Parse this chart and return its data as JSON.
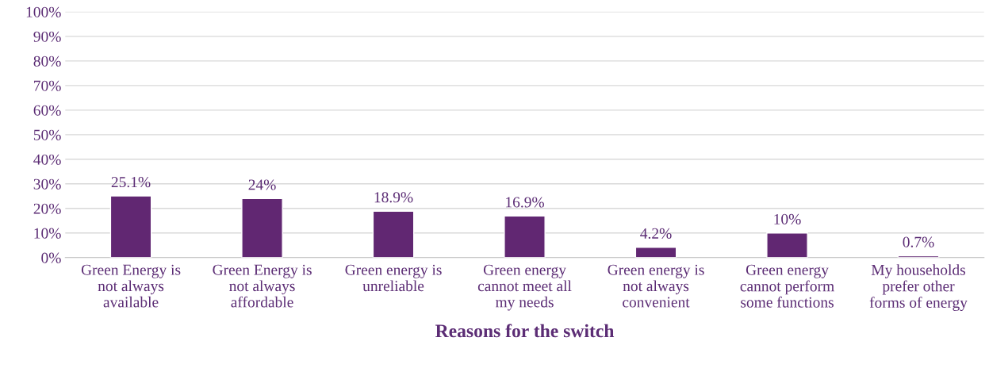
{
  "chart_data": {
    "type": "bar",
    "xlabel": "Reasons for the switch",
    "categories": [
      "Green Energy is\nnot always\navailable",
      "Green Energy is\nnot always\naffordable",
      "Green energy is\nunreliable",
      "Green energy\ncannot meet all\nmy needs",
      "Green energy is\nnot always\nconvenient",
      "Green energy\ncannot perform\nsome functions",
      "My households\nprefer other\nforms of energy"
    ],
    "values": [
      25.1,
      24,
      18.9,
      16.9,
      4.2,
      10,
      0.7
    ],
    "value_labels": [
      "25.1%",
      "24%",
      "18.9%",
      "16.9%",
      "4.2%",
      "10%",
      "0.7%"
    ],
    "color": "#612772",
    "ylim": [
      0,
      100
    ],
    "yticks": [
      {
        "value": 0,
        "label": "0%"
      },
      {
        "value": 10,
        "label": "10%"
      },
      {
        "value": 20,
        "label": "20%"
      },
      {
        "value": 30,
        "label": "30%"
      },
      {
        "value": 40,
        "label": "40%"
      },
      {
        "value": 50,
        "label": "50%"
      },
      {
        "value": 60,
        "label": "60%"
      },
      {
        "value": 70,
        "label": "70%"
      },
      {
        "value": 80,
        "label": "80%"
      },
      {
        "value": 90,
        "label": "90%"
      },
      {
        "value": 100,
        "label": "100%"
      }
    ],
    "grid": "y",
    "legend": false
  }
}
